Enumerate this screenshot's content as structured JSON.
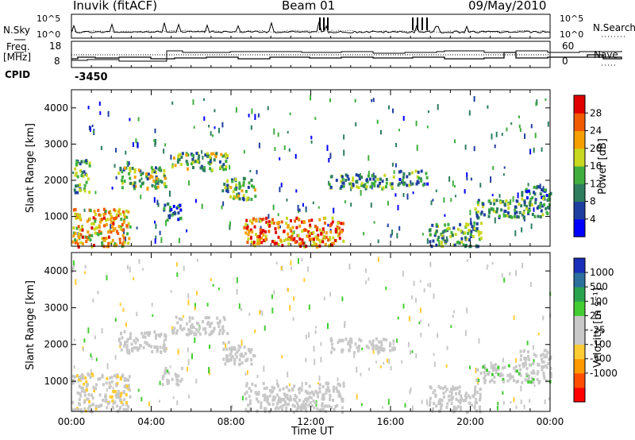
{
  "header": {
    "station": "Inuvik (fitACF)",
    "beam": "Beam 01",
    "date": "09/May/2010"
  },
  "aux": {
    "nsky_label": "N.Sky",
    "nsky_ticks": [
      "10^5",
      "10^0"
    ],
    "nsearch_label": "N.Search",
    "nsearch_ticks": [
      "10^5",
      "10^0"
    ],
    "freq_label": [
      "Freq.",
      "[MHz]"
    ],
    "freq_ticks": [
      "18",
      "8"
    ],
    "nave_label": "Nave",
    "nave_ticks": [
      "60",
      "0"
    ],
    "cpid_label": "CPID",
    "cpid_value": "-3450"
  },
  "colors": {
    "power": [
      "#0000ff",
      "#1f3fa0",
      "#2e7d5e",
      "#3fae3f",
      "#c8d820",
      "#f5a000",
      "#f05a00",
      "#e00000"
    ],
    "velocity": [
      "#ff0000",
      "#ff4d00",
      "#ff9900",
      "#ffcc33",
      "#c8c8c8",
      "#c8c8c8",
      "#44cc33",
      "#2aa34f",
      "#2b6f9a",
      "#1a2fb8"
    ]
  },
  "chart_data": [
    {
      "type": "heatmap",
      "title": "Power",
      "ylabel": "Slant Range [km]",
      "ylim": [
        180,
        4500
      ],
      "yticks": [
        "1000",
        "2000",
        "3000",
        "4000"
      ],
      "xlim": [
        0,
        24
      ],
      "colorbar_label": "Power [dB]",
      "colorbar_ticks": [
        "4",
        "8",
        "12",
        "16",
        "20",
        "24",
        "28"
      ],
      "colorbar_range": [
        0,
        32
      ],
      "features": [
        {
          "t0": 0.0,
          "t1": 2.9,
          "r0": 200,
          "r1": 1250,
          "value": 22
        },
        {
          "t0": 0.1,
          "t1": 0.9,
          "r0": 1700,
          "r1": 2600,
          "value": 12
        },
        {
          "t0": 2.3,
          "t1": 4.7,
          "r0": 1800,
          "r1": 2400,
          "value": 14
        },
        {
          "t0": 4.5,
          "t1": 5.5,
          "r0": 900,
          "r1": 1400,
          "value": 10
        },
        {
          "t0": 5.0,
          "t1": 7.8,
          "r0": 2300,
          "r1": 2800,
          "value": 14
        },
        {
          "t0": 7.5,
          "t1": 9.2,
          "r0": 1500,
          "r1": 2100,
          "value": 14
        },
        {
          "t0": 8.6,
          "t1": 13.6,
          "r0": 200,
          "r1": 1000,
          "value": 24
        },
        {
          "t0": 12.8,
          "t1": 16.2,
          "r0": 1800,
          "r1": 2200,
          "value": 12
        },
        {
          "t0": 16.3,
          "t1": 17.8,
          "r0": 1900,
          "r1": 2300,
          "value": 10
        },
        {
          "t0": 17.9,
          "t1": 20.5,
          "r0": 200,
          "r1": 900,
          "value": 12
        },
        {
          "t0": 20.2,
          "t1": 24.0,
          "r0": 1000,
          "r1": 1500,
          "value": 12
        },
        {
          "t0": 22.4,
          "t1": 24.0,
          "r0": 1500,
          "r1": 1900,
          "value": 10
        }
      ]
    },
    {
      "type": "heatmap",
      "title": "Velocity",
      "ylabel": "Slant Range [km]",
      "xlabel": "Time UT",
      "ylim": [
        180,
        4500
      ],
      "yticks": [
        "1000",
        "2000",
        "3000",
        "4000"
      ],
      "xlim": [
        0,
        24
      ],
      "xticks": [
        "00:00",
        "04:00",
        "08:00",
        "12:00",
        "16:00",
        "20:00",
        "00:00"
      ],
      "colorbar_label": "Velocity [m s⁻¹]",
      "colorbar_ticks": [
        "1000",
        "500",
        "100",
        "25",
        "-25",
        "-100",
        "-500",
        "-1000"
      ],
      "colorbar_range": [
        -1250,
        1250
      ],
      "features": [
        {
          "t0": 0.0,
          "t1": 2.9,
          "r0": 200,
          "r1": 1250,
          "value": -150
        },
        {
          "t0": 2.3,
          "t1": 4.7,
          "r0": 1800,
          "r1": 2400,
          "value": 0
        },
        {
          "t0": 4.5,
          "t1": 5.5,
          "r0": 900,
          "r1": 1400,
          "value": 80
        },
        {
          "t0": 5.0,
          "t1": 7.8,
          "r0": 2300,
          "r1": 2800,
          "value": 0
        },
        {
          "t0": 7.5,
          "t1": 9.2,
          "r0": 1500,
          "r1": 2100,
          "value": 0
        },
        {
          "t0": 8.6,
          "t1": 13.6,
          "r0": 200,
          "r1": 1000,
          "value": 0
        },
        {
          "t0": 12.8,
          "t1": 16.2,
          "r0": 1800,
          "r1": 2200,
          "value": 0
        },
        {
          "t0": 17.9,
          "t1": 20.5,
          "r0": 200,
          "r1": 900,
          "value": 60
        },
        {
          "t0": 20.2,
          "t1": 24.0,
          "r0": 1000,
          "r1": 1500,
          "value": 120
        },
        {
          "t0": 22.4,
          "t1": 24.0,
          "r0": 1500,
          "r1": 1900,
          "value": 0
        }
      ]
    }
  ]
}
